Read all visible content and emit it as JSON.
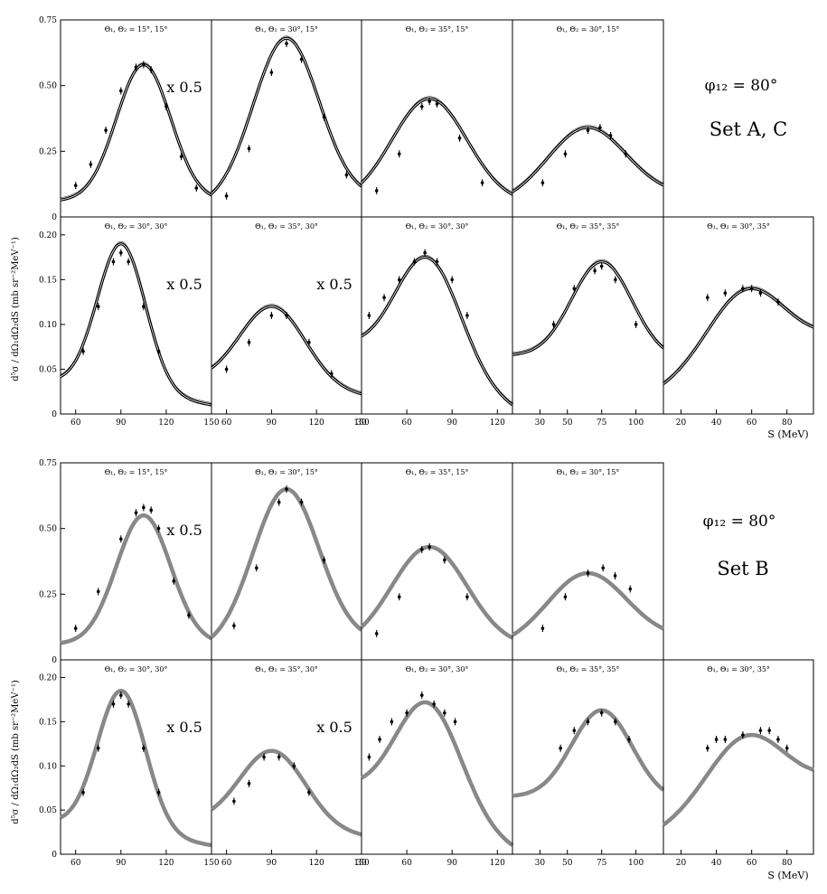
{
  "figure": {
    "sets": [
      {
        "id": "AC",
        "phi_label": "φ₁₂ = 80°",
        "set_label": "Set A, C",
        "ylabel": "d⁵σ / dΩ₁dΩ₂dS (mb sr⁻²MeV⁻¹)",
        "xlabel": "S (MeV)"
      },
      {
        "id": "B",
        "phi_label": "φ₁₂ = 80°",
        "set_label": "Set B",
        "ylabel": "d⁵σ / dΩ₁dΩ₂dS (mb sr⁻²MeV⁻¹)",
        "xlabel": "S (MeV)"
      }
    ],
    "scale_note": "x 0.5"
  },
  "chart_data": [
    {
      "type": "line",
      "set": "Set A, C",
      "panels": [
        {
          "title": "Θ₁, Θ₂ = 15°, 15°",
          "xlim": [
            50,
            150
          ],
          "ylim": [
            0,
            0.75
          ],
          "yticks": [
            "0",
            "0.25",
            "0.50",
            "0.75"
          ],
          "scale_note": "x 0.5",
          "peak_x": 105,
          "peak_y": 0.58,
          "width": 18,
          "base_left": 0.06,
          "base_right": 0.06,
          "series": [
            {
              "name": "",
              "color": "#000000"
            }
          ],
          "data_points": [
            [
              60,
              0.12
            ],
            [
              70,
              0.2
            ],
            [
              80,
              0.33
            ],
            [
              90,
              0.48
            ],
            [
              100,
              0.57
            ],
            [
              105,
              0.58
            ],
            [
              110,
              0.56
            ],
            [
              120,
              0.42
            ],
            [
              130,
              0.23
            ],
            [
              140,
              0.11
            ]
          ]
        },
        {
          "title": "Θ₁, Θ₂ = 30°, 15°",
          "xlim": [
            50,
            150
          ],
          "ylim": [
            0,
            0.75
          ],
          "peak_x": 100,
          "peak_y": 0.68,
          "width": 22,
          "base_left": 0.04,
          "base_right": 0.07,
          "data_points": [
            [
              60,
              0.08
            ],
            [
              75,
              0.26
            ],
            [
              90,
              0.55
            ],
            [
              100,
              0.66
            ],
            [
              110,
              0.6
            ],
            [
              125,
              0.38
            ],
            [
              140,
              0.16
            ]
          ]
        },
        {
          "title": "Θ₁, Θ₂ = 35°, 15°",
          "xlim": [
            50,
            150
          ],
          "ylim": [
            0,
            0.75
          ],
          "peak_x": 95,
          "peak_y": 0.45,
          "width": 25,
          "base_left": 0.05,
          "base_right": 0.05,
          "data_points": [
            [
              60,
              0.1
            ],
            [
              75,
              0.24
            ],
            [
              90,
              0.42
            ],
            [
              95,
              0.44
            ],
            [
              100,
              0.43
            ],
            [
              115,
              0.3
            ],
            [
              130,
              0.13
            ]
          ]
        },
        {
          "title": "Θ₁, Θ₂ = 30°, 15°",
          "xlim": [
            50,
            150
          ],
          "ylim": [
            0,
            0.75
          ],
          "peak_x": 100,
          "peak_y": 0.34,
          "width": 26,
          "base_left": 0.05,
          "base_right": 0.08,
          "data_points": [
            [
              70,
              0.13
            ],
            [
              85,
              0.24
            ],
            [
              100,
              0.33
            ],
            [
              108,
              0.34
            ],
            [
              115,
              0.31
            ],
            [
              125,
              0.24
            ]
          ]
        },
        {
          "title": "Θ₁, Θ₂ = 30°, 30°",
          "xlim": [
            50,
            150
          ],
          "ylim": [
            0,
            0.22
          ],
          "xticks": [
            "60",
            "90",
            "120",
            "150"
          ],
          "yticks": [
            "0",
            "0.05",
            "0.10",
            "0.15",
            "0.20"
          ],
          "scale_note": "x 0.5",
          "peak_x": 90,
          "peak_y": 0.19,
          "width": 16,
          "base_left": 0.035,
          "base_right": 0.01,
          "data_points": [
            [
              65,
              0.07
            ],
            [
              75,
              0.12
            ],
            [
              85,
              0.17
            ],
            [
              90,
              0.18
            ],
            [
              95,
              0.17
            ],
            [
              105,
              0.12
            ],
            [
              115,
              0.07
            ]
          ]
        },
        {
          "title": "Θ₁, Θ₂ = 35°, 30°",
          "xlim": [
            50,
            150
          ],
          "ylim": [
            0,
            0.22
          ],
          "xticks": [
            "60",
            "90",
            "120",
            "150"
          ],
          "scale_note": "x 0.5",
          "peak_x": 90,
          "peak_y": 0.12,
          "width": 22,
          "base_left": 0.035,
          "base_right": 0.02,
          "data_points": [
            [
              60,
              0.05
            ],
            [
              75,
              0.08
            ],
            [
              90,
              0.11
            ],
            [
              100,
              0.11
            ],
            [
              115,
              0.08
            ],
            [
              130,
              0.045
            ]
          ]
        },
        {
          "title": "Θ₁, Θ₂ = 30°, 30°",
          "xlim": [
            30,
            130
          ],
          "ylim": [
            0,
            0.22
          ],
          "xticks": [
            "30",
            "60",
            "90",
            "120"
          ],
          "peak_x": 72,
          "peak_y": 0.175,
          "width": 22,
          "base_left": 0.07,
          "base_right": 0.005,
          "data_points": [
            [
              35,
              0.11
            ],
            [
              45,
              0.13
            ],
            [
              55,
              0.15
            ],
            [
              65,
              0.17
            ],
            [
              72,
              0.18
            ],
            [
              80,
              0.17
            ],
            [
              90,
              0.15
            ],
            [
              100,
              0.11
            ]
          ]
        },
        {
          "title": "Θ₁, Θ₂ = 35°, 35°",
          "xlim": [
            10,
            120
          ],
          "ylim": [
            0,
            0.22
          ],
          "xticks": [
            "30",
            "50",
            "75",
            "100"
          ],
          "peak_x": 75,
          "peak_y": 0.17,
          "width": 22,
          "base_left": 0.065,
          "base_right": 0.06,
          "data_points": [
            [
              40,
              0.1
            ],
            [
              55,
              0.14
            ],
            [
              70,
              0.16
            ],
            [
              75,
              0.165
            ],
            [
              85,
              0.15
            ],
            [
              100,
              0.1
            ]
          ]
        },
        {
          "title": "Θ₁, Θ₂ = 30°, 35°",
          "xlim": [
            10,
            95
          ],
          "ylim": [
            0,
            0.22
          ],
          "xticks": [
            "20",
            "40",
            "60",
            "80"
          ],
          "peak_x": 60,
          "peak_y": 0.14,
          "width": 22,
          "base_left": 0.025,
          "base_right": 0.08,
          "data_points": [
            [
              35,
              0.13
            ],
            [
              45,
              0.135
            ],
            [
              55,
              0.14
            ],
            [
              60,
              0.14
            ],
            [
              65,
              0.135
            ],
            [
              75,
              0.125
            ]
          ]
        }
      ]
    },
    {
      "type": "line",
      "set": "Set B",
      "panels": [
        {
          "title": "Θ₁, Θ₂ = 15°, 15°",
          "xlim": [
            50,
            150
          ],
          "ylim": [
            0,
            0.75
          ],
          "yticks": [
            "0",
            "0.25",
            "0.50",
            "0.75"
          ],
          "scale_note": "x 0.5",
          "peak_x": 105,
          "peak_y": 0.55,
          "width": 18,
          "base_left": 0.06,
          "base_right": 0.06,
          "data_points": [
            [
              60,
              0.12
            ],
            [
              75,
              0.26
            ],
            [
              90,
              0.46
            ],
            [
              100,
              0.56
            ],
            [
              105,
              0.58
            ],
            [
              110,
              0.57
            ],
            [
              115,
              0.5
            ],
            [
              125,
              0.3
            ],
            [
              135,
              0.17
            ]
          ]
        },
        {
          "title": "Θ₁, Θ₂ = 30°, 15°",
          "xlim": [
            50,
            150
          ],
          "ylim": [
            0,
            0.75
          ],
          "peak_x": 100,
          "peak_y": 0.65,
          "width": 22,
          "base_left": 0.04,
          "base_right": 0.07,
          "data_points": [
            [
              65,
              0.13
            ],
            [
              80,
              0.35
            ],
            [
              95,
              0.6
            ],
            [
              100,
              0.65
            ],
            [
              110,
              0.6
            ],
            [
              125,
              0.38
            ]
          ]
        },
        {
          "title": "Θ₁, Θ₂ = 35°, 15°",
          "xlim": [
            50,
            150
          ],
          "ylim": [
            0,
            0.75
          ],
          "peak_x": 95,
          "peak_y": 0.43,
          "width": 25,
          "base_left": 0.05,
          "base_right": 0.05,
          "data_points": [
            [
              60,
              0.1
            ],
            [
              75,
              0.24
            ],
            [
              90,
              0.42
            ],
            [
              95,
              0.43
            ],
            [
              105,
              0.38
            ],
            [
              120,
              0.24
            ]
          ]
        },
        {
          "title": "Θ₁, Θ₂ = 30°, 15°",
          "xlim": [
            50,
            150
          ],
          "ylim": [
            0,
            0.75
          ],
          "peak_x": 100,
          "peak_y": 0.33,
          "width": 26,
          "base_left": 0.05,
          "base_right": 0.08,
          "data_points": [
            [
              70,
              0.12
            ],
            [
              85,
              0.24
            ],
            [
              100,
              0.33
            ],
            [
              110,
              0.35
            ],
            [
              118,
              0.32
            ],
            [
              128,
              0.27
            ]
          ]
        },
        {
          "title": "Θ₁, Θ₂ = 30°, 30°",
          "xlim": [
            50,
            150
          ],
          "ylim": [
            0,
            0.22
          ],
          "xticks": [
            "60",
            "90",
            "120",
            "150"
          ],
          "yticks": [
            "0",
            "0.05",
            "0.10",
            "0.15",
            "0.20"
          ],
          "scale_note": "x 0.5",
          "peak_x": 90,
          "peak_y": 0.185,
          "width": 16,
          "base_left": 0.035,
          "base_right": 0.01,
          "data_points": [
            [
              65,
              0.07
            ],
            [
              75,
              0.12
            ],
            [
              85,
              0.17
            ],
            [
              90,
              0.18
            ],
            [
              95,
              0.17
            ],
            [
              105,
              0.12
            ],
            [
              115,
              0.07
            ]
          ]
        },
        {
          "title": "Θ₁, Θ₂ = 35°, 30°",
          "xlim": [
            50,
            150
          ],
          "ylim": [
            0,
            0.22
          ],
          "xticks": [
            "60",
            "90",
            "120",
            "150"
          ],
          "scale_note": "x 0.5",
          "peak_x": 90,
          "peak_y": 0.117,
          "width": 22,
          "base_left": 0.035,
          "base_right": 0.02,
          "data_points": [
            [
              65,
              0.06
            ],
            [
              75,
              0.08
            ],
            [
              85,
              0.11
            ],
            [
              95,
              0.11
            ],
            [
              105,
              0.1
            ],
            [
              115,
              0.07
            ]
          ]
        },
        {
          "title": "Θ₁, Θ₂ = 30°, 30°",
          "xlim": [
            30,
            130
          ],
          "ylim": [
            0,
            0.22
          ],
          "xticks": [
            "30",
            "60",
            "90",
            "120"
          ],
          "peak_x": 72,
          "peak_y": 0.172,
          "width": 22,
          "base_left": 0.07,
          "base_right": 0.005,
          "data_points": [
            [
              35,
              0.11
            ],
            [
              42,
              0.13
            ],
            [
              50,
              0.15
            ],
            [
              60,
              0.16
            ],
            [
              70,
              0.18
            ],
            [
              78,
              0.17
            ],
            [
              85,
              0.16
            ],
            [
              92,
              0.15
            ]
          ]
        },
        {
          "title": "Θ₁, Θ₂ = 35°, 35°",
          "xlim": [
            10,
            120
          ],
          "ylim": [
            0,
            0.22
          ],
          "xticks": [
            "30",
            "50",
            "75",
            "100"
          ],
          "peak_x": 75,
          "peak_y": 0.163,
          "width": 22,
          "base_left": 0.065,
          "base_right": 0.06,
          "data_points": [
            [
              45,
              0.12
            ],
            [
              55,
              0.14
            ],
            [
              65,
              0.15
            ],
            [
              75,
              0.16
            ],
            [
              85,
              0.15
            ],
            [
              95,
              0.13
            ]
          ]
        },
        {
          "title": "Θ₁, Θ₂ = 30°, 35°",
          "xlim": [
            10,
            95
          ],
          "ylim": [
            0,
            0.22
          ],
          "xticks": [
            "20",
            "40",
            "60",
            "80"
          ],
          "peak_x": 60,
          "peak_y": 0.135,
          "width": 22,
          "base_left": 0.025,
          "base_right": 0.08,
          "data_points": [
            [
              35,
              0.12
            ],
            [
              40,
              0.13
            ],
            [
              45,
              0.13
            ],
            [
              55,
              0.135
            ],
            [
              65,
              0.14
            ],
            [
              70,
              0.14
            ],
            [
              75,
              0.13
            ],
            [
              80,
              0.12
            ]
          ]
        }
      ]
    }
  ]
}
